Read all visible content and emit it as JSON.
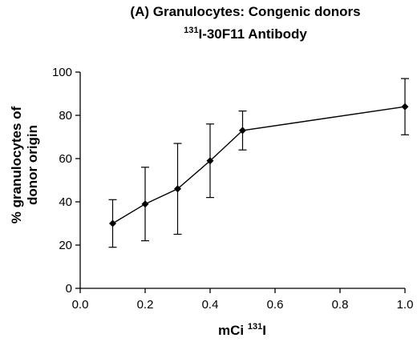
{
  "chart_data": {
    "type": "line",
    "title_line1": "(A) Granulocytes: Congenic donors",
    "title_line2_sup": "131",
    "title_line2_main": "I-30F11 Antibody",
    "ylabel_line1": "% granulocytes of",
    "ylabel_line2": "donor origin",
    "xlabel_main": "mCi ",
    "xlabel_sup": "131",
    "xlabel_end": "I",
    "xlim": [
      0.0,
      1.0
    ],
    "ylim": [
      0,
      100
    ],
    "xticks": [
      "0.0",
      "0.2",
      "0.4",
      "0.6",
      "0.8",
      "1.0"
    ],
    "yticks": [
      "0",
      "20",
      "40",
      "60",
      "80",
      "100"
    ],
    "series": [
      {
        "x": [
          0.1,
          0.2,
          0.3,
          0.4,
          0.5,
          1.0
        ],
        "y": [
          30,
          39,
          46,
          59,
          73,
          84
        ],
        "err_low": [
          19,
          22,
          25,
          42,
          64,
          71
        ],
        "err_high": [
          41,
          56,
          67,
          76,
          82,
          97
        ]
      }
    ],
    "color": "#000000",
    "marker": "diamond"
  }
}
